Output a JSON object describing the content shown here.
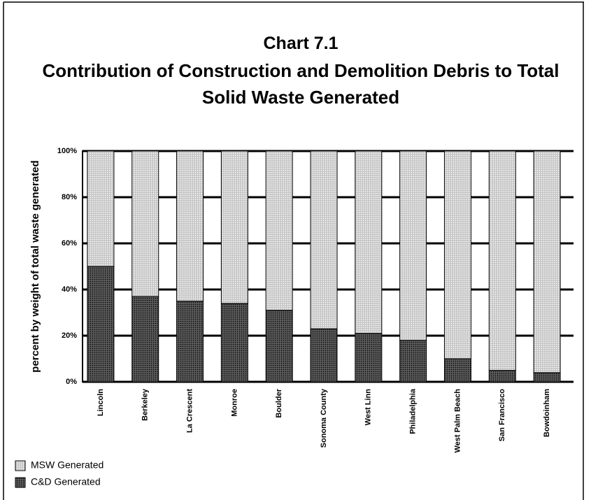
{
  "chart_data": {
    "type": "stacked_bar",
    "title": "Chart 7.1",
    "subtitle": "Contribution of Construction and Demolition Debris to Total Solid Waste Generated",
    "y_label": "percent by weight of total waste generated",
    "categories": [
      "Lincoln",
      "Berkeley",
      "La Crescent",
      "Monroe",
      "Boulder",
      "Sonoma County",
      "West Linn",
      "Philadelphia",
      "West Palm Beach",
      "San Francisco",
      "Bowdoinham"
    ],
    "series": [
      {
        "name": "C&D Generated",
        "color": "#4a4a4a",
        "values": [
          50,
          37,
          35,
          34,
          31,
          23,
          21,
          18,
          10,
          5,
          4
        ]
      },
      {
        "name": "MSW Generated",
        "color": "#d4d4d4",
        "values": [
          50,
          63,
          65,
          66,
          69,
          77,
          79,
          82,
          90,
          95,
          96
        ]
      }
    ],
    "ylim": [
      0,
      100
    ],
    "yticks": [
      {
        "value": 0,
        "label": "0%"
      },
      {
        "value": 20,
        "label": "20%"
      },
      {
        "value": 40,
        "label": "40%"
      },
      {
        "value": 60,
        "label": "60%"
      },
      {
        "value": 80,
        "label": "80%"
      },
      {
        "value": 100,
        "label": "100%"
      }
    ],
    "grid": true,
    "legend": "bottom-left"
  }
}
